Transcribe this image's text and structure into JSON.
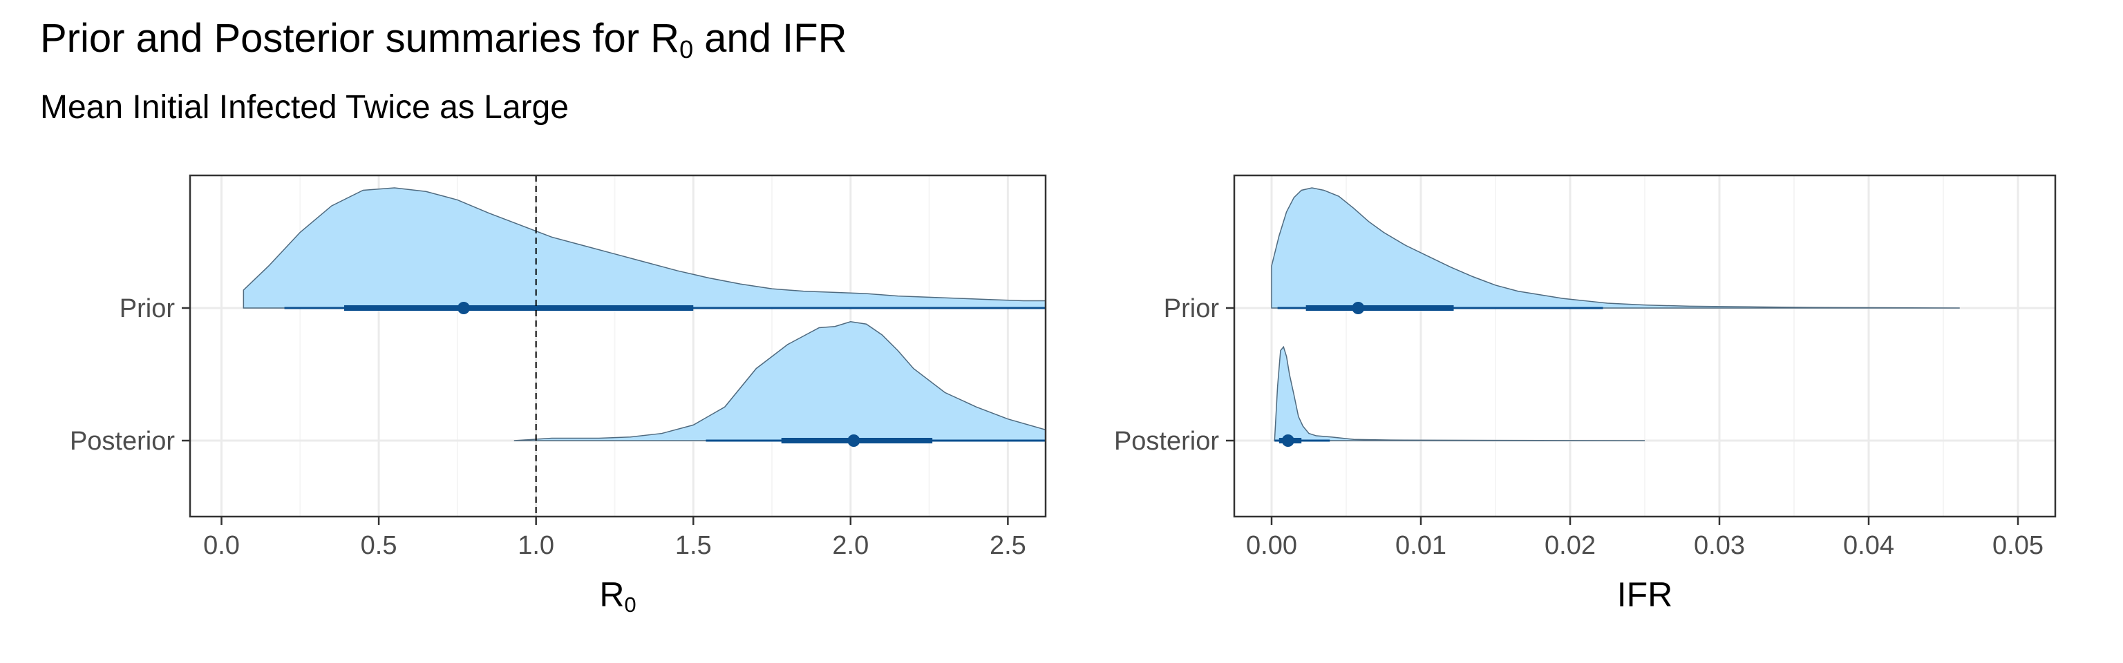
{
  "title": {
    "main": "Prior and Posterior summaries for R",
    "sub": "0",
    "tail": " and IFR"
  },
  "subtitle": "Mean Initial Infected Twice as Large",
  "colors": {
    "fill": "#b3e0fc",
    "outline": "#4f6a7f",
    "interval": "#0b4f8f",
    "grid_major": "#ebebeb",
    "grid_minor": "#f5f5f5",
    "panel_border": "#333333",
    "reference_line": "#000000"
  },
  "chart_data": [
    {
      "type": "halfeye",
      "rows": [
        "Prior",
        "Posterior"
      ],
      "xlabel": {
        "main": "R",
        "sub": "0"
      },
      "xlim": [
        -0.1,
        2.62
      ],
      "xticks": [
        0.0,
        0.5,
        1.0,
        1.5,
        2.0,
        2.5
      ],
      "xtick_labels": [
        "0.0",
        "0.5",
        "1.0",
        "1.5",
        "2.0",
        "2.5"
      ],
      "reference_line": 1.0,
      "grid": true,
      "series": [
        {
          "row": "Prior",
          "median": 0.77,
          "interval_66": [
            0.39,
            1.5
          ],
          "interval_95": [
            0.2,
            2.62
          ],
          "density": [
            [
              0.07,
              0.15
            ],
            [
              0.15,
              0.35
            ],
            [
              0.25,
              0.63
            ],
            [
              0.35,
              0.85
            ],
            [
              0.45,
              0.98
            ],
            [
              0.55,
              1.0
            ],
            [
              0.65,
              0.97
            ],
            [
              0.75,
              0.9
            ],
            [
              0.85,
              0.79
            ],
            [
              0.95,
              0.69
            ],
            [
              1.05,
              0.59
            ],
            [
              1.15,
              0.52
            ],
            [
              1.25,
              0.45
            ],
            [
              1.35,
              0.38
            ],
            [
              1.45,
              0.31
            ],
            [
              1.55,
              0.25
            ],
            [
              1.65,
              0.2
            ],
            [
              1.75,
              0.16
            ],
            [
              1.85,
              0.14
            ],
            [
              1.95,
              0.13
            ],
            [
              2.05,
              0.12
            ],
            [
              2.15,
              0.1
            ],
            [
              2.25,
              0.09
            ],
            [
              2.35,
              0.08
            ],
            [
              2.45,
              0.07
            ],
            [
              2.55,
              0.06
            ],
            [
              2.62,
              0.06
            ]
          ]
        },
        {
          "row": "Posterior",
          "median": 2.01,
          "interval_66": [
            1.78,
            2.26
          ],
          "interval_95": [
            1.54,
            2.62
          ],
          "density": [
            [
              0.93,
              0.0
            ],
            [
              1.05,
              0.02
            ],
            [
              1.2,
              0.02
            ],
            [
              1.3,
              0.03
            ],
            [
              1.4,
              0.06
            ],
            [
              1.5,
              0.13
            ],
            [
              1.6,
              0.28
            ],
            [
              1.7,
              0.6
            ],
            [
              1.8,
              0.8
            ],
            [
              1.85,
              0.87
            ],
            [
              1.9,
              0.94
            ],
            [
              1.95,
              0.95
            ],
            [
              2.0,
              0.99
            ],
            [
              2.05,
              0.97
            ],
            [
              2.1,
              0.88
            ],
            [
              2.15,
              0.75
            ],
            [
              2.2,
              0.6
            ],
            [
              2.3,
              0.4
            ],
            [
              2.4,
              0.28
            ],
            [
              2.5,
              0.18
            ],
            [
              2.62,
              0.09
            ]
          ]
        }
      ]
    },
    {
      "type": "halfeye",
      "rows": [
        "Prior",
        "Posterior"
      ],
      "xlabel": {
        "main": "IFR",
        "sub": ""
      },
      "xlim": [
        -0.0025,
        0.0525
      ],
      "xticks": [
        0.0,
        0.01,
        0.02,
        0.03,
        0.04,
        0.05
      ],
      "xtick_labels": [
        "0.00",
        "0.01",
        "0.02",
        "0.03",
        "0.04",
        "0.05"
      ],
      "grid": true,
      "series": [
        {
          "row": "Prior",
          "median": 0.0058,
          "interval_66": [
            0.0023,
            0.0122
          ],
          "interval_95": [
            0.0004,
            0.0222
          ],
          "density": [
            [
              0.0,
              0.35
            ],
            [
              0.0005,
              0.6
            ],
            [
              0.001,
              0.8
            ],
            [
              0.0015,
              0.92
            ],
            [
              0.002,
              0.98
            ],
            [
              0.0027,
              1.0
            ],
            [
              0.0035,
              0.98
            ],
            [
              0.0045,
              0.93
            ],
            [
              0.0055,
              0.83
            ],
            [
              0.0065,
              0.72
            ],
            [
              0.0075,
              0.63
            ],
            [
              0.009,
              0.52
            ],
            [
              0.0105,
              0.43
            ],
            [
              0.012,
              0.34
            ],
            [
              0.0135,
              0.26
            ],
            [
              0.015,
              0.19
            ],
            [
              0.0165,
              0.14
            ],
            [
              0.018,
              0.11
            ],
            [
              0.0195,
              0.08
            ],
            [
              0.021,
              0.06
            ],
            [
              0.0225,
              0.04
            ],
            [
              0.025,
              0.025
            ],
            [
              0.028,
              0.015
            ],
            [
              0.032,
              0.01
            ],
            [
              0.036,
              0.005
            ],
            [
              0.04,
              0.003
            ],
            [
              0.0461,
              0.0
            ]
          ]
        },
        {
          "row": "Posterior",
          "median": 0.0011,
          "interval_66": [
            0.0005,
            0.002
          ],
          "interval_95": [
            0.0002,
            0.0039
          ],
          "density": [
            [
              0.0002,
              0.0
            ],
            [
              0.0004,
              0.45
            ],
            [
              0.0006,
              0.75
            ],
            [
              0.0008,
              0.78
            ],
            [
              0.001,
              0.7
            ],
            [
              0.0012,
              0.55
            ],
            [
              0.0015,
              0.38
            ],
            [
              0.0018,
              0.2
            ],
            [
              0.0021,
              0.12
            ],
            [
              0.0025,
              0.06
            ],
            [
              0.003,
              0.04
            ],
            [
              0.004,
              0.03
            ],
            [
              0.0055,
              0.01
            ],
            [
              0.008,
              0.005
            ],
            [
              0.015,
              0.002
            ],
            [
              0.025,
              0.0
            ]
          ]
        }
      ]
    }
  ]
}
